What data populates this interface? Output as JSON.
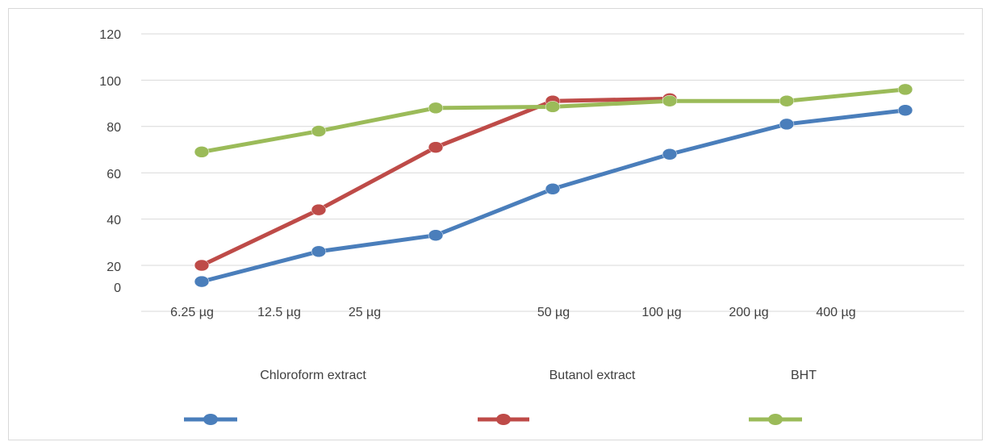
{
  "chart_data": {
    "type": "line",
    "y_ticks": [
      "120",
      "100",
      "80",
      "60",
      "40",
      "20",
      "0"
    ],
    "x_tick_labels": [
      "6.25 µg",
      "12.5 µg",
      "25 µg",
      "50 µg",
      "100 µg",
      "200 µg",
      "400 µg"
    ],
    "group_labels": [
      "Chloroform extract",
      "Butanol extract",
      "BHT"
    ],
    "ylim": [
      0,
      120
    ],
    "grid": true,
    "legend_position": "bottom",
    "series": [
      {
        "color": "#4a7ebb",
        "values": [
          13,
          26,
          33,
          53,
          68,
          81,
          87
        ]
      },
      {
        "color": "#be4b48",
        "values": [
          20,
          44,
          71,
          91,
          92
        ]
      },
      {
        "color": "#9bbb59",
        "values": [
          69,
          78,
          88,
          88.5,
          91,
          91,
          96
        ]
      }
    ]
  }
}
